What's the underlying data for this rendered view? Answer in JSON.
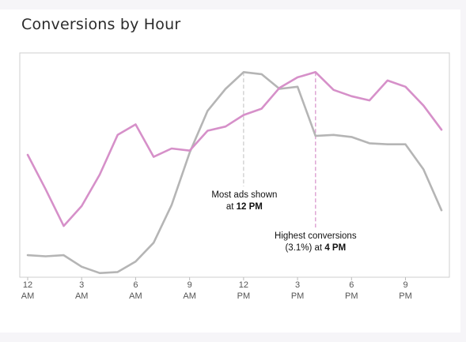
{
  "card": {
    "title": "Conversions by Hour"
  },
  "chart_data": {
    "type": "line",
    "title": "Conversions by Hour",
    "xlabel": "",
    "ylabel": "",
    "x": [
      0,
      1,
      2,
      3,
      4,
      5,
      6,
      7,
      8,
      9,
      10,
      11,
      12,
      13,
      14,
      15,
      16,
      17,
      18,
      19,
      20,
      21,
      22,
      23
    ],
    "xlim": [
      0,
      23
    ],
    "ylim": [
      0,
      1
    ],
    "grid": false,
    "ticks": [
      {
        "x": 0,
        "line1": "12",
        "line2": "AM"
      },
      {
        "x": 3,
        "line1": "3",
        "line2": "AM"
      },
      {
        "x": 6,
        "line1": "6",
        "line2": "AM"
      },
      {
        "x": 9,
        "line1": "9",
        "line2": "AM"
      },
      {
        "x": 12,
        "line1": "12",
        "line2": "PM"
      },
      {
        "x": 15,
        "line1": "3",
        "line2": "PM"
      },
      {
        "x": 18,
        "line1": "6",
        "line2": "PM"
      },
      {
        "x": 21,
        "line1": "9",
        "line2": "PM"
      }
    ],
    "series": [
      {
        "key": "ads",
        "color": "#b5b5b5",
        "values": [
          0.09,
          0.085,
          0.09,
          0.035,
          0.005,
          0.01,
          0.06,
          0.15,
          0.33,
          0.58,
          0.78,
          0.885,
          0.965,
          0.955,
          0.885,
          0.895,
          0.66,
          0.665,
          0.655,
          0.625,
          0.62,
          0.62,
          0.5,
          0.305
        ]
      },
      {
        "key": "conversions",
        "color": "#d690c9",
        "values": [
          0.57,
          0.405,
          0.23,
          0.325,
          0.475,
          0.665,
          0.715,
          0.56,
          0.6,
          0.59,
          0.685,
          0.705,
          0.76,
          0.79,
          0.89,
          0.94,
          0.965,
          0.88,
          0.85,
          0.83,
          0.925,
          0.895,
          0.805,
          0.69
        ]
      }
    ],
    "annotations": [
      {
        "key": "ads",
        "x": 12,
        "color": "#c9c9c9",
        "line1": "Most ads shown",
        "line2_prefix": "at ",
        "line2_bold": "12 PM"
      },
      {
        "key": "conversions",
        "x": 16,
        "color": "#d690c9",
        "line1": "Highest conversions",
        "line2_prefix": "(3.1%) at ",
        "line2_bold": "4 PM"
      }
    ]
  }
}
